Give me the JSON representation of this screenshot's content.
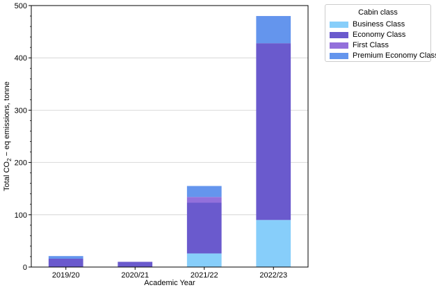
{
  "chart_data": {
    "type": "bar",
    "stacked": true,
    "categories": [
      "2019/20",
      "2020/21",
      "2021/22",
      "2022/23"
    ],
    "series": [
      {
        "name": "Business Class",
        "color": "#87cefa",
        "values": [
          0,
          0,
          26,
          90
        ]
      },
      {
        "name": "Economy Class",
        "color": "#6a5acd",
        "values": [
          16,
          10,
          97,
          338
        ]
      },
      {
        "name": "First Class",
        "color": "#9370db",
        "values": [
          0,
          0,
          11,
          0
        ]
      },
      {
        "name": "Premium Economy Class",
        "color": "#6495ed",
        "values": [
          5,
          0,
          21,
          52
        ]
      }
    ],
    "xlabel": "Academic Year",
    "ylabel": {
      "prefix": "Total CO",
      "subscript": "2",
      "suffix": " − eq emissions, tonne"
    },
    "ylim": [
      0,
      500
    ],
    "yticks": [
      0,
      100,
      200,
      300,
      400,
      500
    ],
    "grid": "horizontal",
    "legend": {
      "title": "Cabin class",
      "placement": "outside-top-right"
    }
  }
}
